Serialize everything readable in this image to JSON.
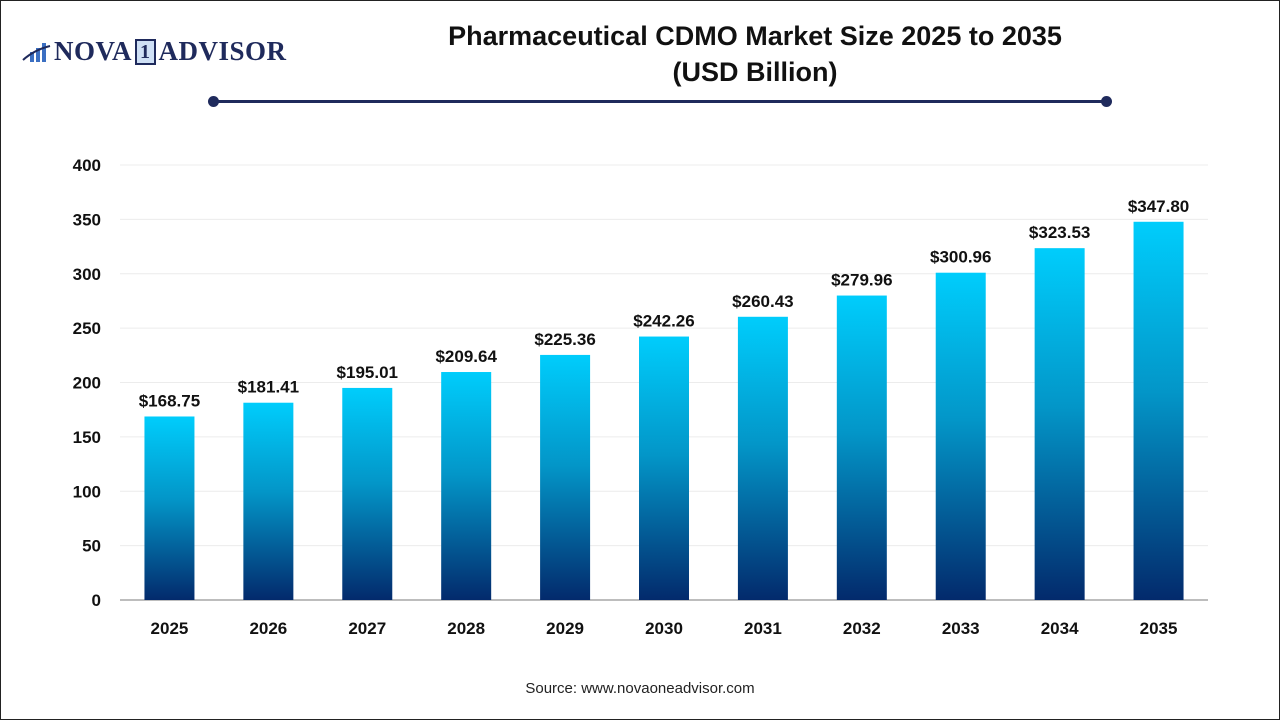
{
  "logo": {
    "text_left": "NOVA",
    "text_one": "1",
    "text_right": "ADVISOR",
    "icon": "bar-chart-swoosh-icon"
  },
  "title_line1": "Pharmaceutical CDMO Market Size 2025 to 2035",
  "title_line2": "(USD Billion)",
  "source": "Source: www.novaoneadvisor.com",
  "colors": {
    "bar_top": "#00cdfc",
    "bar_bottom": "#032a6c",
    "accent": "#1f2a5c"
  },
  "chart_data": {
    "type": "bar",
    "title": "Pharmaceutical CDMO Market Size 2025 to 2035 (USD Billion)",
    "categories": [
      "2025",
      "2026",
      "2027",
      "2028",
      "2029",
      "2030",
      "2031",
      "2032",
      "2033",
      "2034",
      "2035"
    ],
    "values": [
      168.75,
      181.41,
      195.01,
      209.64,
      225.36,
      242.26,
      260.43,
      279.96,
      300.96,
      323.53,
      347.8
    ],
    "data_labels": [
      "$168.75",
      "$181.41",
      "$195.01",
      "$209.64",
      "$225.36",
      "$242.26",
      "$260.43",
      "$279.96",
      "$300.96",
      "$323.53",
      "$347.80"
    ],
    "yticks": [
      0,
      50,
      100,
      150,
      200,
      250,
      300,
      350,
      400
    ],
    "ylim": [
      0,
      400
    ],
    "grid": true,
    "xlabel": "",
    "ylabel": ""
  }
}
